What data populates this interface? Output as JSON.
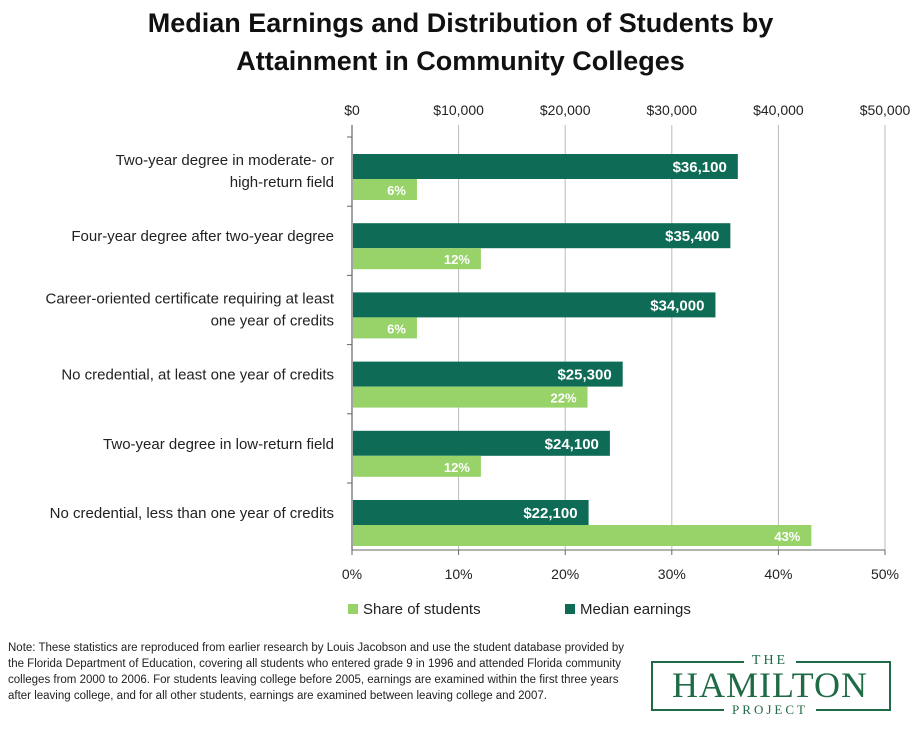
{
  "title_line1": "Median Earnings and Distribution of Students by",
  "title_line2": "Attainment in Community Colleges",
  "note": "Note: These statistics are reproduced from earlier research by Louis Jacobson and use the student database provided by the Florida Department of Education, covering all students who entered grade 9 in 1996 and attended Florida community colleges from 2000 to 2006. For students leaving college before 2005, earnings are examined within the first three years after leaving college, and for all other students, earnings are examined between leaving college and 2007.",
  "logo": {
    "the": "THE",
    "name": "HAMILTON",
    "project": "PROJECT"
  },
  "colors": {
    "earnings": "#0e6b56",
    "share": "#98d36a"
  },
  "chart_data": {
    "type": "bar",
    "orientation": "horizontal",
    "categories": [
      [
        "Two-year degree in moderate- or",
        "high-return field"
      ],
      [
        "Four-year degree after two-year degree"
      ],
      [
        "Career-oriented certificate requiring at least",
        "one year of credits"
      ],
      [
        "No credential, at least one year of credits"
      ],
      [
        "Two-year degree in low-return field"
      ],
      [
        "No credential, less than one year of credits"
      ]
    ],
    "series": [
      {
        "name": "Median earnings",
        "axis": "top",
        "values": [
          36100,
          35400,
          34000,
          25300,
          24100,
          22100
        ],
        "labels": [
          "$36,100",
          "$35,400",
          "$34,000",
          "$25,300",
          "$24,100",
          "$22,100"
        ]
      },
      {
        "name": "Share of students",
        "axis": "bottom",
        "values": [
          6,
          12,
          6,
          22,
          12,
          43
        ],
        "labels": [
          "6%",
          "12%",
          "6%",
          "22%",
          "12%",
          "43%"
        ]
      }
    ],
    "top_axis": {
      "range": [
        0,
        50000
      ],
      "ticks": [
        "$0",
        "$10,000",
        "$20,000",
        "$30,000",
        "$40,000",
        "$50,000"
      ]
    },
    "bottom_axis": {
      "range": [
        0,
        50
      ],
      "ticks": [
        "0%",
        "10%",
        "20%",
        "30%",
        "40%",
        "50%"
      ]
    },
    "legend": [
      "Share of students",
      "Median earnings"
    ],
    "legend_position": "bottom",
    "grid": true
  }
}
